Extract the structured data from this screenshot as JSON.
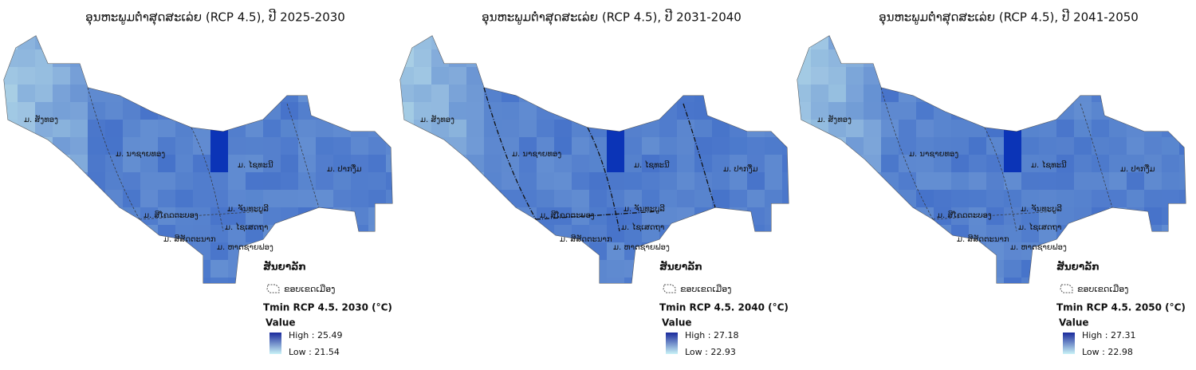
{
  "panels": [
    {
      "title": "ອຸນຫະພູມຕ່ຳສຸດສະເລ່ຍ (RCP 4.5), ປີ 2025-2030",
      "districts": [
        "ມ. ສັງທອງ",
        "ມ. ນາຊາຍທອງ",
        "ມ. ໄຊທະນີ",
        "ມ. ປາກງື່ມ",
        "ມ. ຈັນທະບູລີ",
        "ມ. ສີໂຄດຕະບອງ",
        "ມ. ໄຊເສດຖາ",
        "ມ. ສີສັດຕະນາກ",
        "ມ. ຫາດຊາຍຟອງ"
      ],
      "legend": {
        "heading": "ສັນຍາລັກ",
        "boundary": "ຂອບເຂດເມືອງ",
        "title": "Tmin RCP 4.5. 2030 (°C)",
        "field": "Value",
        "high": "High : 25.49",
        "low": "Low : 21.54"
      }
    },
    {
      "title": "ອຸນຫະພູມຕ່ຳສຸດສະເລ່ຍ (RCP 4.5), ປີ 2031-2040",
      "districts": [
        "ມ. ສັງທອງ",
        "ມ. ນາຊາຍທອງ",
        "ມ. ໄຊທະນີ",
        "ມ. ປາກງື່ມ",
        "ມ. ຈັນທະບູລີ",
        "ມ. ສີໂຄດຕະບອງ",
        "ມ. ໄຊເສດຖາ",
        "ມ. ສີສັດຕະນາກ",
        "ມ. ຫາດຊາຍຟອງ"
      ],
      "legend": {
        "heading": "ສັນຍາລັກ",
        "boundary": "ຂອບເຂດເມືອງ",
        "title": "Tmin RCP 4.5. 2040 (°C)",
        "field": "Value",
        "high": "High : 27.18",
        "low": "Low : 22.93"
      }
    },
    {
      "title": "ອຸນຫະພູມຕ່ຳສຸດສະເລ່ຍ (RCP 4.5), ປີ 2041-2050",
      "districts": [
        "ມ. ສັງທອງ",
        "ມ. ນາຊາຍທອງ",
        "ມ. ໄຊທະນີ",
        "ມ. ປາກງື່ມ",
        "ມ. ຈັນທະບູລີ",
        "ມ. ສີໂຄດຕະບອງ",
        "ມ. ໄຊເສດຖາ",
        "ມ. ສີສັດຕະນາກ",
        "ມ. ຫາດຊາຍຟອງ"
      ],
      "legend": {
        "heading": "ສັນຍາລັກ",
        "boundary": "ຂອບເຂດເມືອງ",
        "title": "Tmin RCP 4.5. 2050 (°C)",
        "field": "Value",
        "high": "High : 27.31",
        "low": "Low : 22.98"
      }
    }
  ]
}
